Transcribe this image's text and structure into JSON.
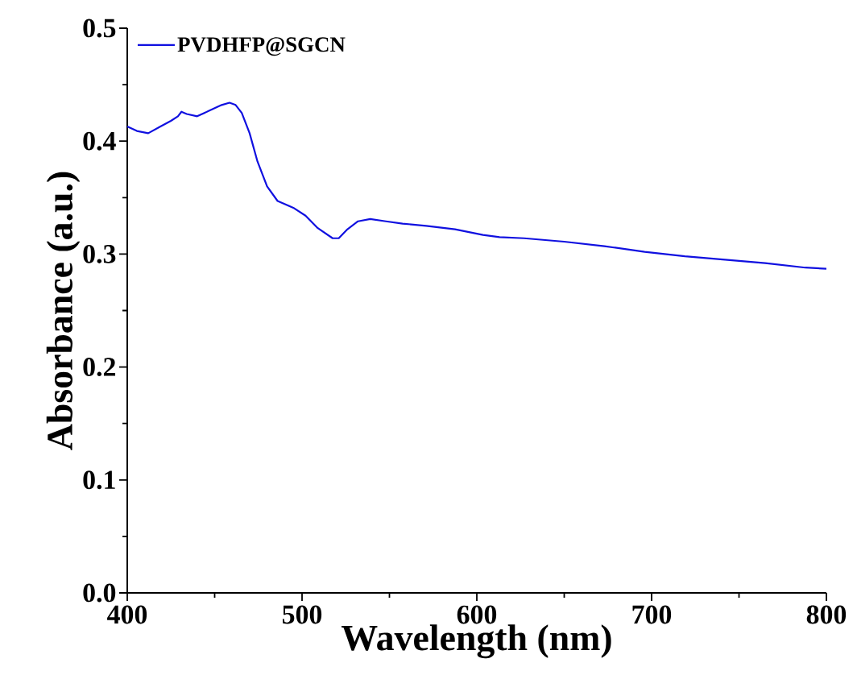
{
  "chart_data": {
    "type": "line",
    "xlabel": "Wavelength (nm)",
    "ylabel": "Absorbance (a.u.)",
    "xlim": [
      400,
      800
    ],
    "ylim": [
      0,
      0.5
    ],
    "xticks": [
      400,
      500,
      600,
      700,
      800
    ],
    "yticks": [
      {
        "value": 0,
        "label": "0.0"
      },
      0.1,
      0.2,
      0.3,
      0.4,
      0.5
    ],
    "legend": "top left",
    "grid": false,
    "marker": "none",
    "line_style": "solid",
    "series": [
      {
        "name": "PVDHFP@SGCN",
        "color": "#1010e0",
        "x": [
          400,
          405.5,
          412,
          419,
          425,
          429,
          431,
          434,
          440,
          447,
          454,
          458.5,
          462,
          465.5,
          470,
          474.5,
          480,
          486,
          495,
          502,
          509,
          517.5,
          521,
          526,
          532,
          539,
          548,
          557.5,
          571,
          587.5,
          603.5,
          613,
          627,
          650,
          673,
          696,
          719,
          742,
          765,
          788,
          800
        ],
        "values": [
          0.413,
          0.409,
          0.407,
          0.413,
          0.418,
          0.422,
          0.426,
          0.424,
          0.422,
          0.427,
          0.432,
          0.434,
          0.432,
          0.425,
          0.407,
          0.382,
          0.36,
          0.347,
          0.341,
          0.334,
          0.323,
          0.314,
          0.314,
          0.322,
          0.329,
          0.331,
          0.329,
          0.327,
          0.325,
          0.322,
          0.317,
          0.315,
          0.314,
          0.311,
          0.307,
          0.302,
          0.298,
          0.295,
          0.292,
          0.288,
          0.287
        ]
      }
    ]
  }
}
